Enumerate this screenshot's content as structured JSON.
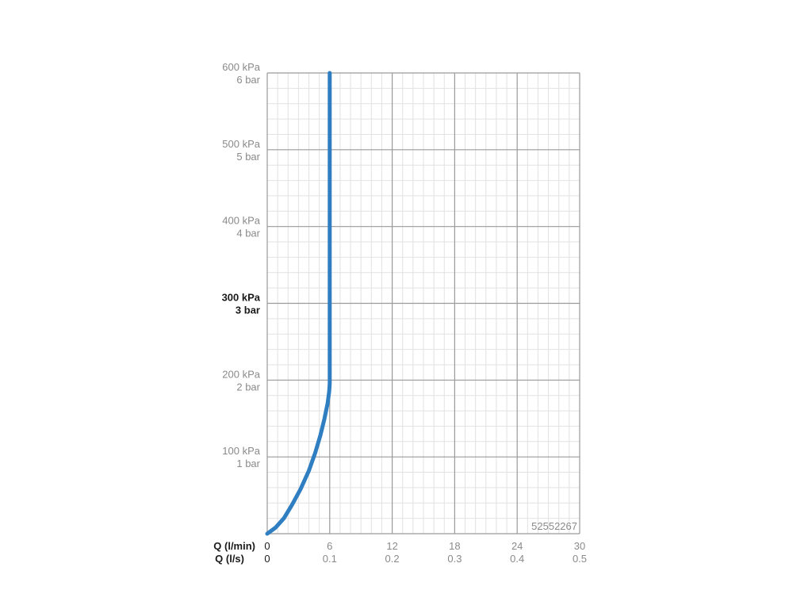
{
  "chart_data": {
    "type": "line",
    "title": "",
    "x_axis": {
      "primary_label": "Q (l/min)",
      "secondary_label": "Q (l/s)",
      "range": [
        0,
        30
      ],
      "ticks": [
        0,
        6,
        12,
        18,
        24,
        30
      ],
      "tick_labels": [
        "0",
        "6",
        "12",
        "18",
        "24",
        "30"
      ],
      "secondary_tick_labels": [
        "0",
        "0.1",
        "0.2",
        "0.3",
        "0.4",
        "0.5"
      ]
    },
    "y_axis": {
      "unit": "kPa",
      "range": [
        0,
        600
      ],
      "ticks": [
        100,
        200,
        300,
        400,
        500,
        600
      ],
      "tick_labels": [
        {
          "kpa": "100 kPa",
          "bar": "1 bar",
          "bold": false
        },
        {
          "kpa": "200 kPa",
          "bar": "2 bar",
          "bold": false
        },
        {
          "kpa": "300 kPa",
          "bar": "3 bar",
          "bold": true
        },
        {
          "kpa": "400 kPa",
          "bar": "4 bar",
          "bold": false
        },
        {
          "kpa": "500 kPa",
          "bar": "5 bar",
          "bold": false
        },
        {
          "kpa": "600 kPa",
          "bar": "6 bar",
          "bold": false
        }
      ]
    },
    "grid": true,
    "legend": "none",
    "series": [
      {
        "color": "#2f7ec1",
        "x": [
          0,
          0.8,
          1.6,
          2.4,
          3.2,
          4.0,
          4.6,
          5.1,
          5.5,
          5.8,
          5.95,
          6.0,
          6.0,
          6.0,
          6.0,
          6.0
        ],
        "y": [
          0,
          8,
          20,
          38,
          58,
          82,
          105,
          128,
          150,
          170,
          185,
          195,
          250,
          350,
          500,
          600
        ]
      }
    ],
    "annotation": "52552267"
  }
}
